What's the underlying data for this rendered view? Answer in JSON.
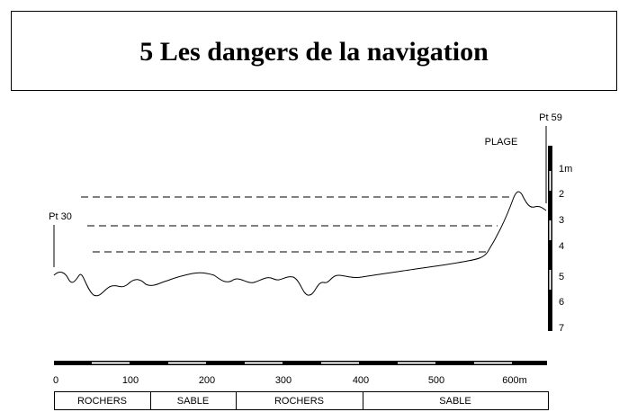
{
  "header": {
    "title": "5 Les dangers de la navigation"
  },
  "labels": {
    "end_point": "Pt 59",
    "beach": "PLAGE",
    "start_point": "Pt 30"
  },
  "depth_scale": [
    "1m",
    "2",
    "3",
    "4",
    "5",
    "6",
    "7"
  ],
  "distance_scale": [
    "0",
    "100",
    "200",
    "300",
    "400",
    "500",
    "600m"
  ],
  "seabed": [
    "ROCHERS",
    "SABLE",
    "ROCHERS",
    "SABLE"
  ]
}
